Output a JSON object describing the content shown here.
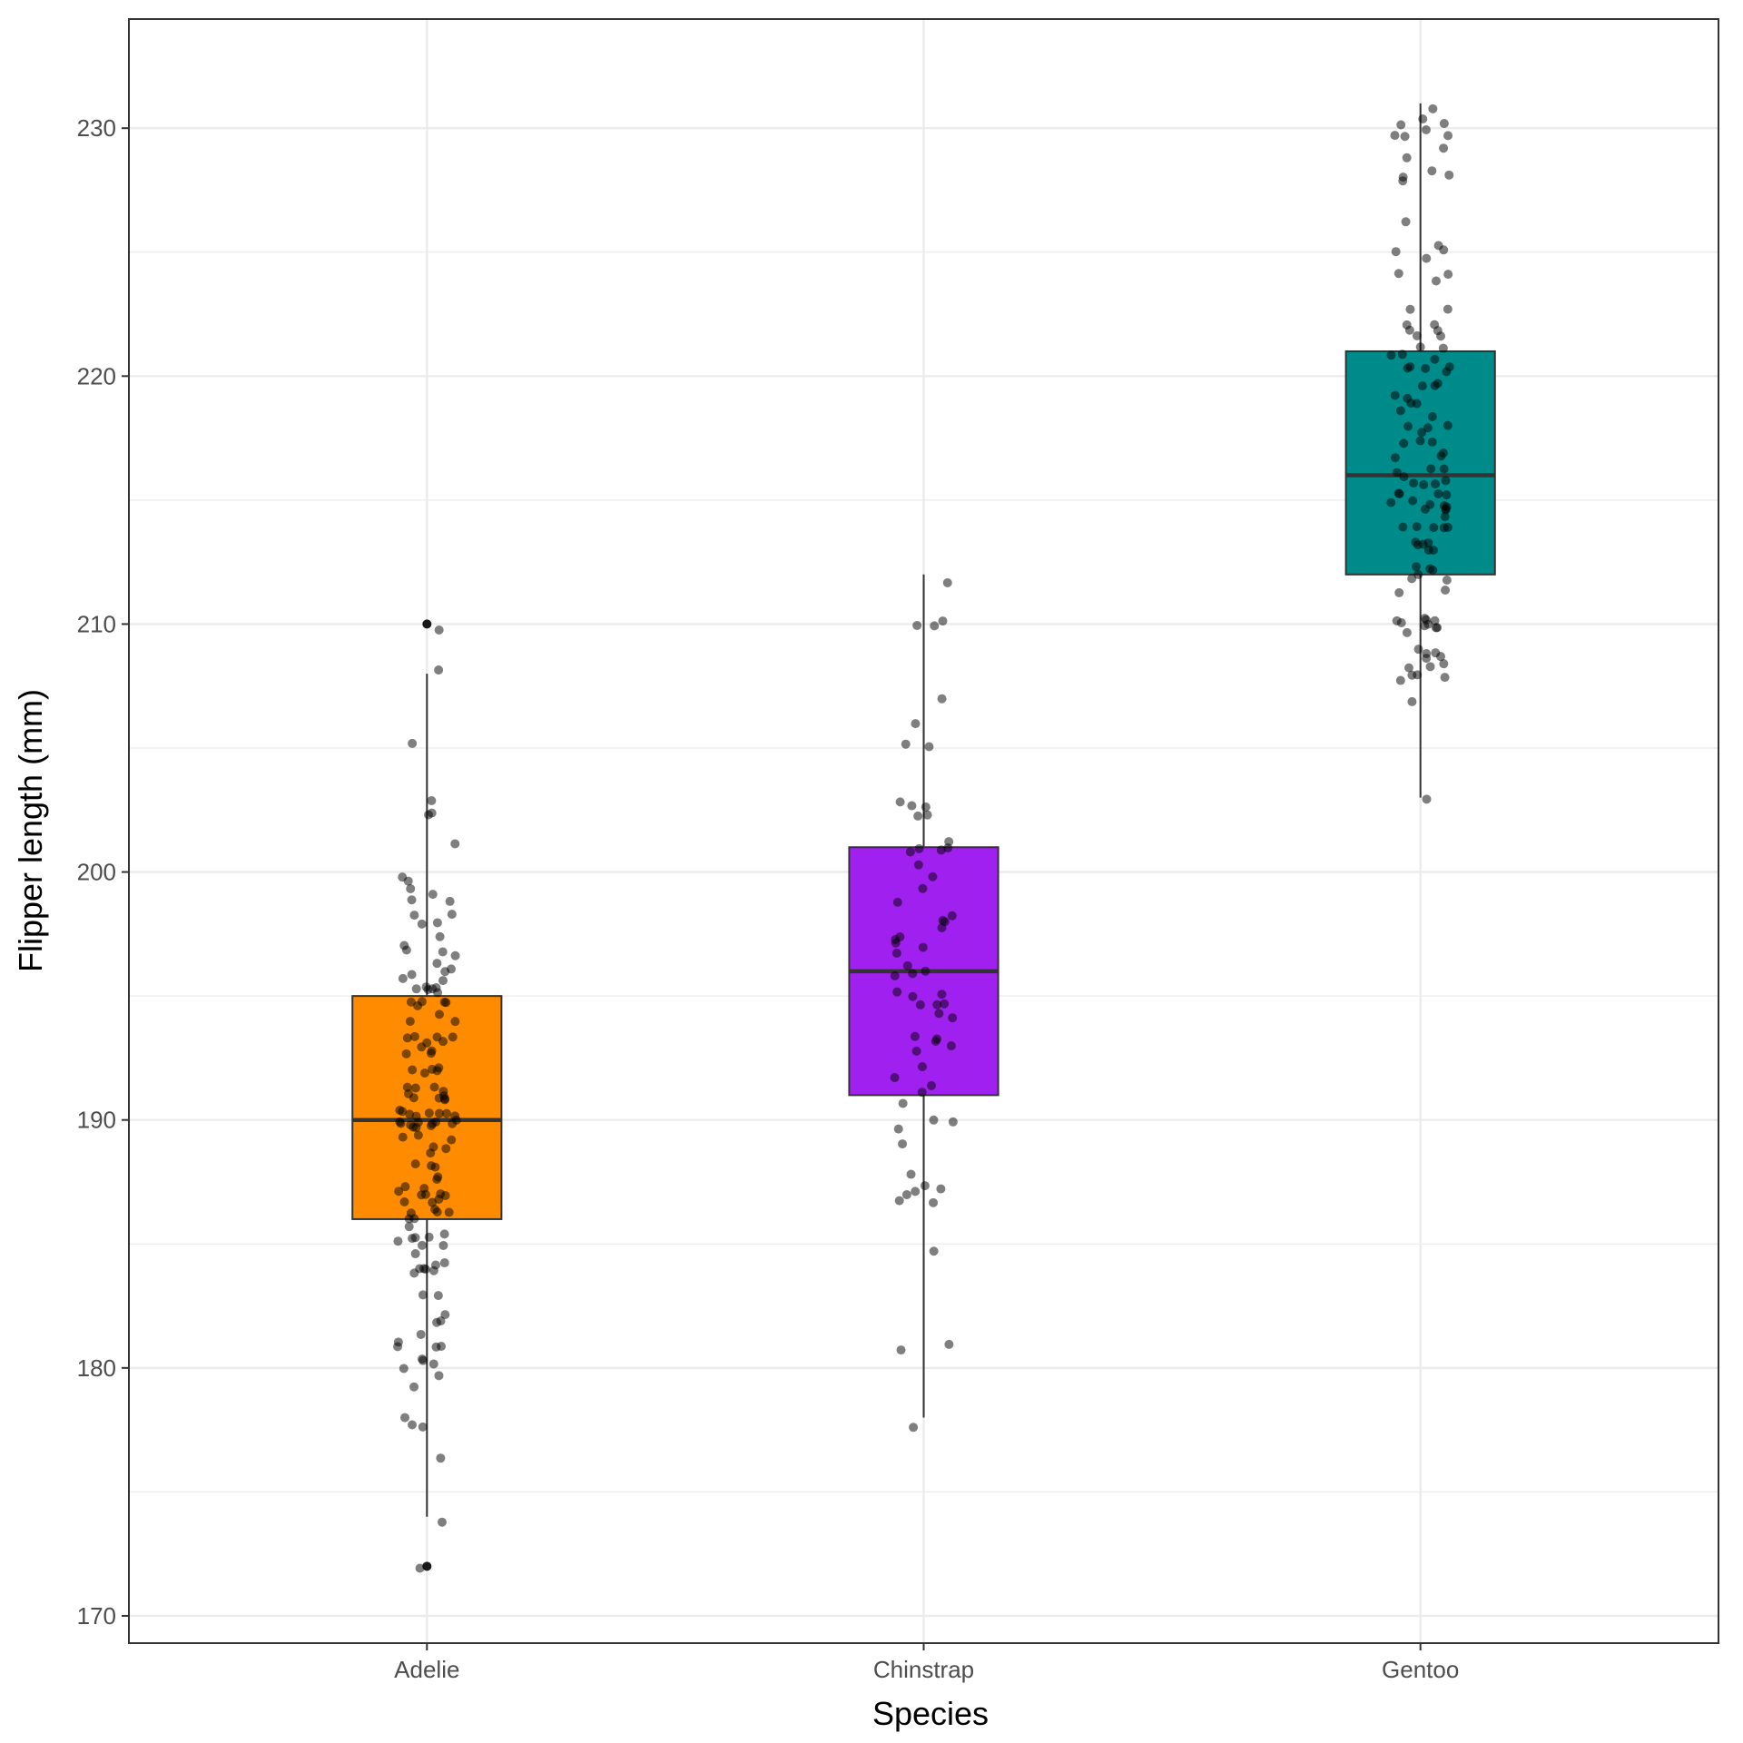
{
  "chart_data": {
    "type": "box",
    "title": "",
    "xlabel": "Species",
    "ylabel": "Flipper length (mm)",
    "ylim": [
      168.9,
      234.4
    ],
    "yticks": [
      170,
      180,
      190,
      200,
      210,
      220,
      230
    ],
    "grid": true,
    "legend": "none",
    "categories": [
      "Adelie",
      "Chinstrap",
      "Gentoo"
    ],
    "colors": [
      "#FF8C00",
      "#A020F0",
      "#008B8B"
    ],
    "boxes": [
      {
        "name": "Adelie",
        "min": 174,
        "q1": 186,
        "median": 190,
        "q3": 195,
        "max": 208,
        "outliers": [
          172,
          210
        ]
      },
      {
        "name": "Chinstrap",
        "min": 178,
        "q1": 191,
        "median": 196,
        "q3": 201,
        "max": 212,
        "outliers": []
      },
      {
        "name": "Gentoo",
        "min": 203,
        "q1": 212,
        "median": 216,
        "q3": 221,
        "max": 231,
        "outliers": []
      }
    ],
    "points": [
      [
        181,
        186,
        195,
        193,
        190,
        181,
        195,
        193,
        190,
        186,
        180,
        182,
        191,
        198,
        185,
        195,
        197,
        184,
        194,
        174,
        180,
        189,
        185,
        180,
        187,
        183,
        187,
        172,
        180,
        178,
        178,
        188,
        184,
        195,
        196,
        190,
        180,
        181,
        184,
        182,
        195,
        186,
        196,
        185,
        190,
        182,
        179,
        190,
        191,
        186,
        188,
        190,
        200,
        187,
        191,
        186,
        193,
        181,
        194,
        185,
        195,
        185,
        192,
        184,
        192,
        195,
        188,
        190,
        198,
        190,
        190,
        196,
        197,
        190,
        195,
        191,
        184,
        187,
        195,
        189,
        196,
        187,
        193,
        191,
        194,
        190,
        189,
        189,
        190,
        202,
        205,
        185,
        186,
        187,
        208,
        190,
        196,
        178,
        192,
        192,
        203,
        183,
        190,
        193,
        184,
        199,
        190,
        181,
        197,
        198,
        191,
        193,
        197,
        191,
        196,
        188,
        199,
        189,
        189,
        187,
        198,
        176,
        202,
        186,
        199,
        191,
        195,
        191,
        210,
        190,
        197,
        193,
        199,
        187,
        190,
        191,
        200,
        185,
        193,
        193,
        187,
        188,
        190,
        192,
        185,
        190,
        184,
        195,
        193,
        187,
        201
      ],
      [
        192,
        196,
        193,
        188,
        197,
        198,
        178,
        197,
        195,
        198,
        193,
        194,
        185,
        201,
        190,
        201,
        197,
        181,
        190,
        195,
        181,
        191,
        187,
        193,
        195,
        197,
        200,
        200,
        191,
        205,
        187,
        201,
        187,
        203,
        195,
        199,
        195,
        210,
        192,
        205,
        210,
        187,
        196,
        196,
        196,
        201,
        190,
        212,
        187,
        198,
        199,
        201,
        193,
        203,
        187,
        197,
        191,
        203,
        202,
        194,
        206,
        189,
        195,
        207,
        202,
        193,
        210,
        198
      ],
      [
        211,
        230,
        210,
        218,
        215,
        210,
        211,
        219,
        209,
        215,
        214,
        216,
        214,
        213,
        210,
        217,
        210,
        221,
        209,
        222,
        218,
        215,
        213,
        215,
        215,
        215,
        216,
        215,
        210,
        220,
        222,
        209,
        207,
        230,
        220,
        220,
        213,
        219,
        208,
        208,
        208,
        225,
        210,
        216,
        222,
        217,
        210,
        225,
        213,
        215,
        210,
        220,
        210,
        225,
        217,
        220,
        208,
        220,
        208,
        224,
        208,
        221,
        214,
        231,
        219,
        230,
        214,
        229,
        220,
        223,
        216,
        221,
        221,
        217,
        216,
        230,
        209,
        220,
        215,
        223,
        212,
        221,
        212,
        224,
        212,
        228,
        218,
        218,
        212,
        230,
        218,
        228,
        212,
        224,
        214,
        226,
        216,
        222,
        203,
        225,
        219,
        228,
        215,
        228,
        216,
        215,
        210,
        219,
        208,
        209,
        216,
        229,
        213,
        230,
        217,
        230,
        217,
        222,
        214,
        215,
        222,
        212,
        213
      ]
    ]
  }
}
